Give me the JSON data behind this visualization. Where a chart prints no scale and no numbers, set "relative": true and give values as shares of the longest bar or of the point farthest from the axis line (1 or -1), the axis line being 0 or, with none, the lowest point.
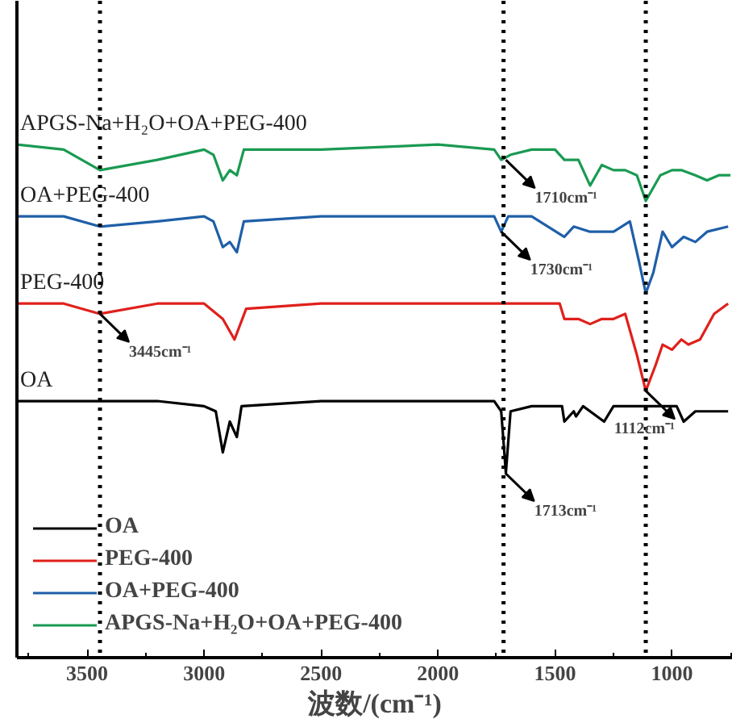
{
  "chart_data": {
    "type": "line",
    "relative": true,
    "xlabel": "波数/(cm⁻¹)",
    "xlim": [
      3800,
      740
    ],
    "xticks": [
      3500,
      3000,
      2500,
      2000,
      1500,
      1000
    ],
    "legend": "bottom left",
    "grid": false,
    "line_style": "solid",
    "marker": "none",
    "series": [
      {
        "name": "OA",
        "color": "#000000",
        "x": [
          3800,
          3200,
          3000,
          2950,
          2920,
          2890,
          2860,
          2840,
          2500,
          2000,
          1760,
          1730,
          1710,
          1690,
          1600,
          1470,
          1460,
          1420,
          1410,
          1380,
          1290,
          1250,
          1112,
          980,
          950,
          900,
          760
        ],
        "values": [
          0.5,
          0.5,
          0.49,
          0.48,
          0.4,
          0.46,
          0.43,
          0.49,
          0.5,
          0.5,
          0.5,
          0.48,
          0.36,
          0.48,
          0.49,
          0.49,
          0.46,
          0.48,
          0.47,
          0.49,
          0.46,
          0.49,
          0.49,
          0.49,
          0.46,
          0.48,
          0.48
        ]
      },
      {
        "name": "PEG-400",
        "color": "#e0201b",
        "x": [
          3800,
          3600,
          3445,
          3200,
          3000,
          2920,
          2870,
          2820,
          2500,
          2000,
          1600,
          1480,
          1460,
          1400,
          1350,
          1300,
          1250,
          1200,
          1150,
          1112,
          1070,
          1040,
          1000,
          960,
          930,
          880,
          820,
          760
        ],
        "values": [
          0.69,
          0.69,
          0.67,
          0.69,
          0.69,
          0.66,
          0.62,
          0.68,
          0.69,
          0.69,
          0.69,
          0.69,
          0.66,
          0.66,
          0.65,
          0.66,
          0.66,
          0.67,
          0.59,
          0.52,
          0.57,
          0.61,
          0.6,
          0.62,
          0.61,
          0.62,
          0.67,
          0.69
        ]
      },
      {
        "name": "OA+PEG-400",
        "color": "#1f5fa8",
        "x": [
          3800,
          3600,
          3445,
          3200,
          3000,
          2960,
          2920,
          2890,
          2860,
          2830,
          2500,
          2000,
          1760,
          1730,
          1700,
          1600,
          1460,
          1420,
          1350,
          1300,
          1250,
          1180,
          1140,
          1112,
          1080,
          1040,
          1000,
          950,
          900,
          850,
          760
        ],
        "values": [
          0.86,
          0.86,
          0.84,
          0.85,
          0.86,
          0.85,
          0.8,
          0.81,
          0.79,
          0.85,
          0.86,
          0.86,
          0.86,
          0.83,
          0.86,
          0.86,
          0.82,
          0.84,
          0.83,
          0.83,
          0.83,
          0.85,
          0.77,
          0.71,
          0.75,
          0.83,
          0.8,
          0.82,
          0.81,
          0.83,
          0.84
        ]
      },
      {
        "name": "APGS-Na+H₂O+OA+PEG-400",
        "color": "#1a9a52",
        "x": [
          3800,
          3600,
          3445,
          3200,
          3000,
          2960,
          2920,
          2890,
          2860,
          2830,
          2500,
          2000,
          1760,
          1730,
          1690,
          1600,
          1500,
          1460,
          1400,
          1350,
          1300,
          1250,
          1200,
          1150,
          1112,
          1050,
          1000,
          960,
          900,
          850,
          800,
          750
        ],
        "values": [
          1.0,
          0.99,
          0.95,
          0.97,
          0.99,
          0.98,
          0.93,
          0.95,
          0.94,
          0.99,
          0.99,
          1.0,
          0.99,
          0.97,
          0.98,
          0.99,
          0.99,
          0.97,
          0.97,
          0.92,
          0.96,
          0.95,
          0.95,
          0.94,
          0.89,
          0.94,
          0.95,
          0.95,
          0.94,
          0.93,
          0.94,
          0.94
        ]
      }
    ],
    "ref_lines": [
      {
        "axis": "x",
        "value": 3445,
        "color": "#000000",
        "line_style": "dotted"
      },
      {
        "axis": "x",
        "value": 1720,
        "color": "#000000",
        "line_style": "dotted"
      },
      {
        "axis": "x",
        "value": 1112,
        "color": "#000000",
        "line_style": "dotted"
      }
    ],
    "annotations": [
      {
        "text": "3445cm⁻¹",
        "x": 3445,
        "y": 0.67
      },
      {
        "text": "1710cm⁻¹",
        "x": 1710,
        "y": 0.97
      },
      {
        "text": "1730cm⁻¹",
        "x": 1730,
        "y": 0.83
      },
      {
        "text": "1713cm⁻¹",
        "x": 1713,
        "y": 0.36
      },
      {
        "text": "1112cm⁻¹",
        "x": 1112,
        "y": 0.52
      }
    ]
  }
}
